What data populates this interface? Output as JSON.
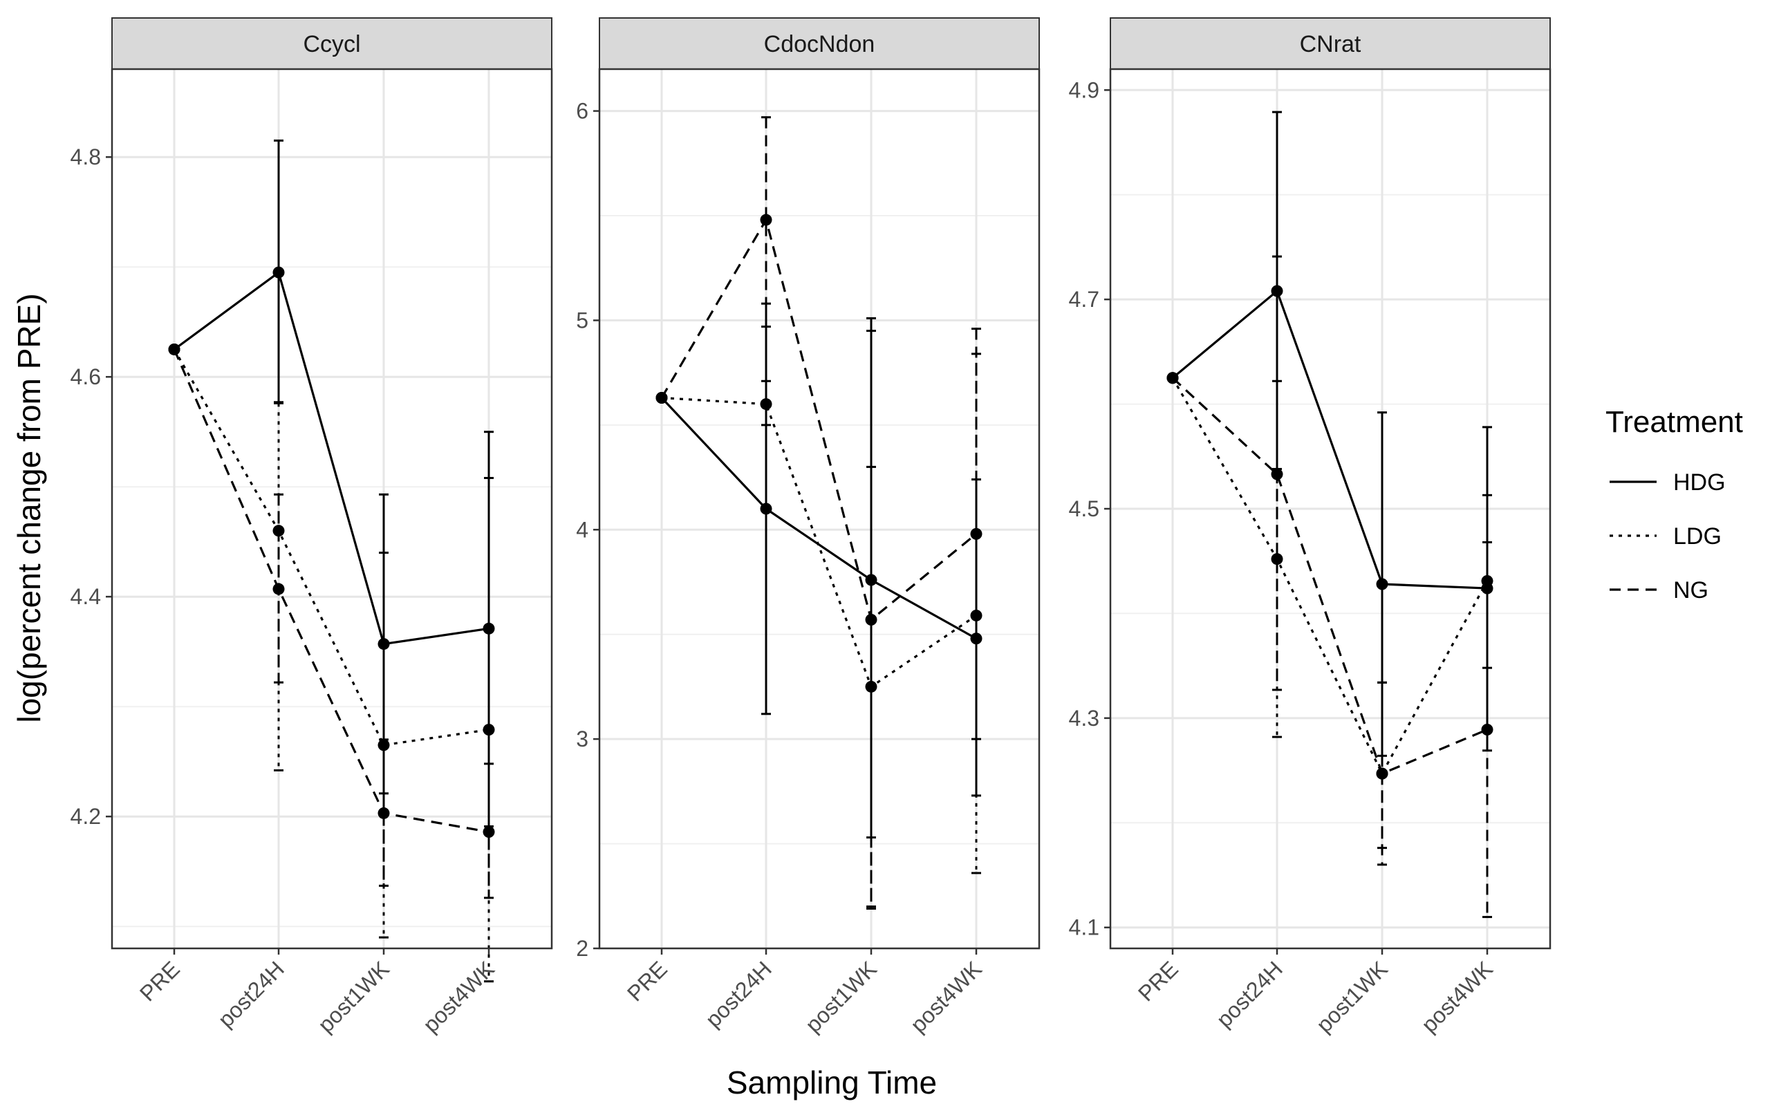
{
  "chart_data": {
    "type": "line",
    "xlabel": "Sampling Time",
    "ylabel": "log(percent change from PRE)",
    "categories": [
      "PRE",
      "post24H",
      "post1WK",
      "post4WK"
    ],
    "legend": {
      "title": "Treatment",
      "placement": "right",
      "entries": [
        {
          "name": "HDG",
          "linetype": "solid"
        },
        {
          "name": "LDG",
          "linetype": "dotted"
        },
        {
          "name": "NG",
          "linetype": "dashed"
        }
      ]
    },
    "panels": [
      {
        "title": "Ccycl",
        "ylim": [
          4.08,
          4.88
        ],
        "yticks": [
          "4.2",
          "4.4",
          "4.6",
          "4.8"
        ],
        "series": [
          {
            "name": "HDG",
            "values": [
              4.625,
              4.695,
              4.357,
              4.371
            ],
            "lower": [
              null,
              4.577,
              4.221,
              4.191
            ],
            "upper": [
              null,
              4.815,
              4.493,
              4.55
            ]
          },
          {
            "name": "LDG",
            "values": [
              4.625,
              4.46,
              4.265,
              4.279
            ],
            "lower": [
              null,
              4.242,
              4.09,
              4.05
            ],
            "upper": [
              null,
              4.576,
              4.44,
              4.508
            ]
          },
          {
            "name": "NG",
            "values": [
              4.625,
              4.407,
              4.203,
              4.186
            ],
            "lower": [
              null,
              4.322,
              4.137,
              4.126
            ],
            "upper": [
              null,
              4.493,
              4.27,
              4.248
            ]
          }
        ]
      },
      {
        "title": "CdocNdon",
        "ylim": [
          2.0,
          6.2
        ],
        "yticks": [
          "2",
          "3",
          "4",
          "5",
          "6"
        ],
        "series": [
          {
            "name": "HDG",
            "values": [
              4.63,
              4.1,
              3.76,
              3.48
            ],
            "lower": [
              null,
              3.12,
              2.53,
              2.73
            ],
            "upper": [
              null,
              5.08,
              5.01,
              4.24
            ]
          },
          {
            "name": "LDG",
            "values": [
              4.63,
              4.6,
              3.25,
              3.59
            ],
            "lower": [
              null,
              4.5,
              2.2,
              2.36
            ],
            "upper": [
              null,
              4.71,
              4.3,
              4.84
            ]
          },
          {
            "name": "NG",
            "values": [
              4.63,
              5.48,
              3.57,
              3.98
            ],
            "lower": [
              null,
              4.97,
              2.19,
              3.0
            ],
            "upper": [
              null,
              5.97,
              4.95,
              4.96
            ]
          }
        ]
      },
      {
        "title": "CNrat",
        "ylim": [
          4.08,
          4.92
        ],
        "yticks": [
          "4.1",
          "4.3",
          "4.5",
          "4.7",
          "4.9"
        ],
        "series": [
          {
            "name": "HDG",
            "values": [
              4.625,
              4.708,
              4.428,
              4.424
            ],
            "lower": [
              null,
              4.538,
              4.264,
              4.269
            ],
            "upper": [
              null,
              4.879,
              4.592,
              4.578
            ]
          },
          {
            "name": "LDG",
            "values": [
              4.625,
              4.452,
              4.247,
              4.431
            ],
            "lower": [
              null,
              4.282,
              4.176,
              4.348
            ],
            "upper": [
              null,
              4.622,
              4.334,
              4.513
            ]
          },
          {
            "name": "NG",
            "values": [
              4.625,
              4.533,
              4.247,
              4.289
            ],
            "lower": [
              null,
              4.327,
              4.16,
              4.11
            ],
            "upper": [
              null,
              4.741,
              4.334,
              4.468
            ]
          }
        ]
      }
    ]
  }
}
